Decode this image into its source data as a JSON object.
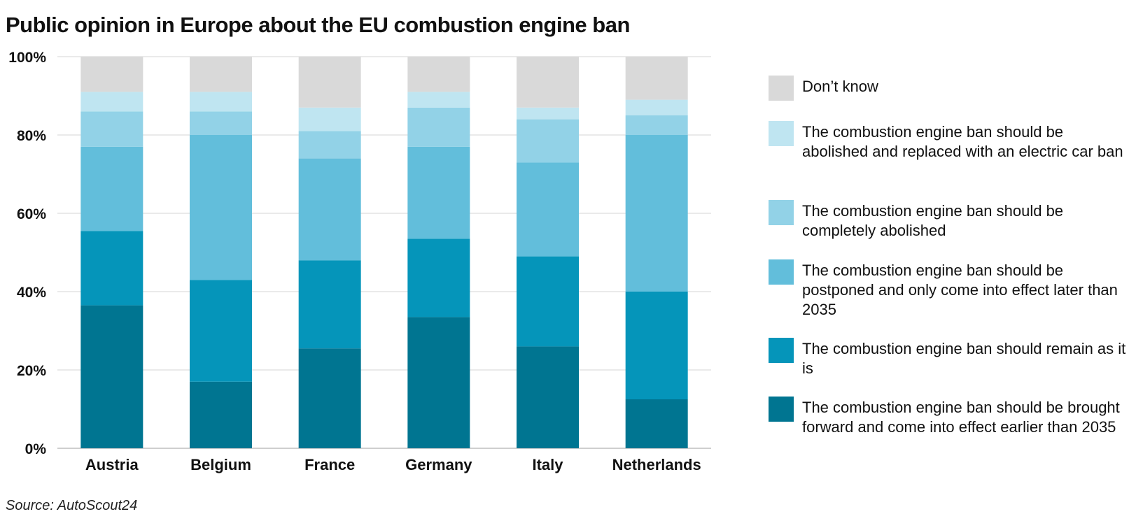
{
  "title": "Public opinion in Europe about the EU combustion engine ban",
  "source": "Source: AutoScout24",
  "chart_data": {
    "type": "bar",
    "stacked": true,
    "title": "Public opinion in Europe about the EU combustion engine ban",
    "categories": [
      "Austria",
      "Belgium",
      "France",
      "Germany",
      "Italy",
      "Netherlands"
    ],
    "yticks": [
      "0%",
      "20%",
      "40%",
      "60%",
      "80%",
      "100%"
    ],
    "ylim": [
      0,
      100
    ],
    "grid": true,
    "legend_position": "right",
    "series": [
      {
        "name": "The combustion engine ban should be brought forward and come into effect earlier than 2035",
        "color": "#007591",
        "values": [
          36.5,
          17,
          25.5,
          33.5,
          26,
          12.5
        ]
      },
      {
        "name": "The combustion engine ban should remain as it is",
        "color": "#0595ba",
        "values": [
          19,
          26,
          22.5,
          20,
          23,
          27.5
        ]
      },
      {
        "name": "The combustion engine ban should be postponed and only come into effect later than 2035",
        "color": "#62bedb",
        "values": [
          21.5,
          37,
          26,
          23.5,
          24,
          40
        ]
      },
      {
        "name": "The combustion engine ban should be completely abolished",
        "color": "#92d2e7",
        "values": [
          9,
          6,
          7,
          10,
          11,
          5
        ]
      },
      {
        "name": "The combustion engine ban should be abolished and replaced with an electric car ban",
        "color": "#bfe5f1",
        "values": [
          5,
          5,
          6,
          4,
          3,
          4
        ]
      },
      {
        "name": "Don’t know",
        "color": "#d9d9d9",
        "values": [
          9,
          9,
          13,
          9,
          13,
          11
        ]
      }
    ]
  }
}
